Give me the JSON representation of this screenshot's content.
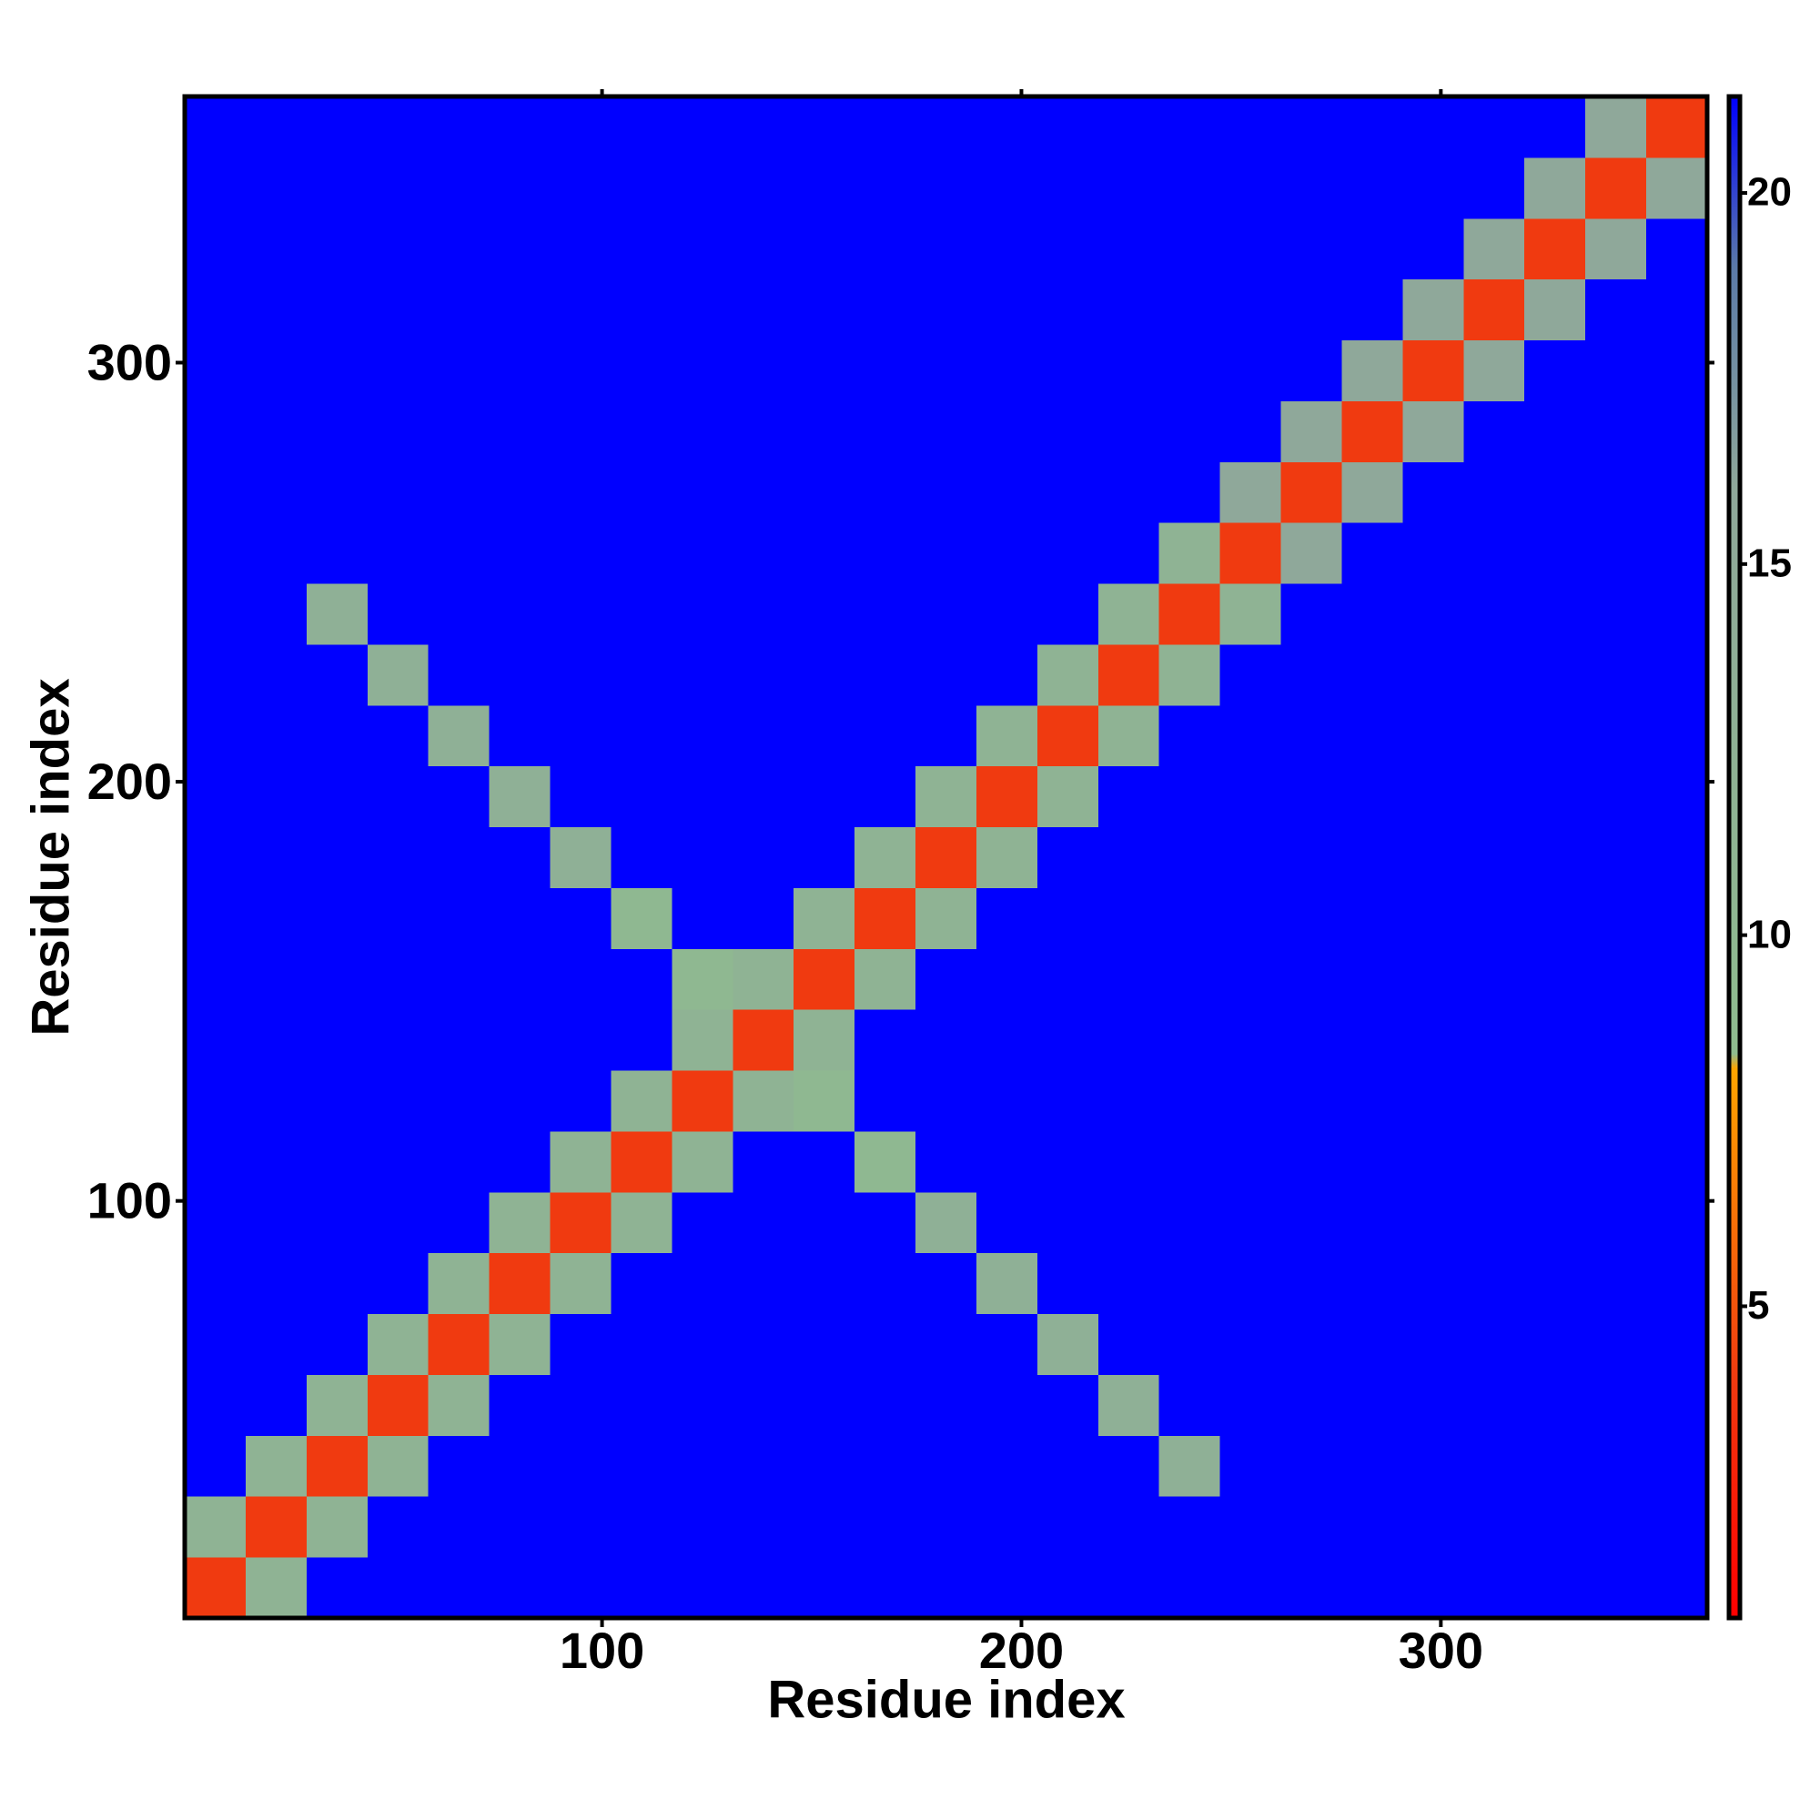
{
  "chart_data": {
    "type": "heatmap",
    "xlabel": "Residue index",
    "ylabel": "Residue index",
    "xlim": [
      0.5,
      363.5
    ],
    "ylim": [
      0.5,
      363.5
    ],
    "xticks": [
      100,
      200,
      300
    ],
    "yticks": [
      100,
      200,
      300
    ],
    "zlim": [
      0.8,
      21.3
    ],
    "colorbar_ticks": [
      5,
      10,
      15,
      20
    ],
    "colorscale": [
      [
        0.8,
        "#ff0000"
      ],
      [
        4,
        "#f03a10"
      ],
      [
        8.2,
        "#ffa500"
      ],
      [
        8.4,
        "#8fbc8f"
      ],
      [
        16,
        "#8fa89a"
      ],
      [
        19,
        "#5b7aa8"
      ],
      [
        21.3,
        "#0000ff"
      ]
    ],
    "xbins": [
      0.5,
      15.02,
      29.54,
      44.06,
      58.58,
      73.1,
      87.62,
      102.14,
      116.66,
      131.18,
      145.7,
      160.22,
      174.74,
      189.26,
      203.78,
      218.3,
      232.82,
      247.34,
      261.86,
      276.38,
      290.9,
      305.42,
      319.94,
      334.46,
      348.98,
      363.5
    ],
    "ybins": [
      0.5,
      15.02,
      29.54,
      44.06,
      58.58,
      73.1,
      87.62,
      102.14,
      116.66,
      131.18,
      145.7,
      160.22,
      174.74,
      189.26,
      203.78,
      218.3,
      232.82,
      247.34,
      261.86,
      276.38,
      290.9,
      305.42,
      319.94,
      334.46,
      348.98,
      363.5
    ],
    "z": [
      [
        4,
        12,
        21.3,
        21.3,
        21.3,
        21.3,
        21.3,
        21.3,
        21.3,
        21.3,
        21.3,
        21.3,
        21.3,
        21.3,
        21.3,
        21.3,
        21.3,
        21.3,
        21.3,
        21.3,
        21.3,
        21.3,
        21.3,
        21.3,
        21.3
      ],
      [
        12,
        4,
        12,
        21.3,
        21.3,
        21.3,
        21.3,
        21.3,
        21.3,
        21.3,
        21.3,
        21.3,
        21.3,
        21.3,
        21.3,
        21.3,
        21.3,
        21.3,
        21.3,
        21.3,
        21.3,
        21.3,
        21.3,
        21.3,
        21.3
      ],
      [
        21.3,
        12,
        4,
        12,
        21.3,
        21.3,
        21.3,
        21.3,
        21.3,
        21.3,
        21.3,
        21.3,
        21.3,
        21.3,
        21.3,
        21.3,
        13,
        21.3,
        21.3,
        21.3,
        21.3,
        21.3,
        21.3,
        21.3,
        21.3
      ],
      [
        21.3,
        21.3,
        12,
        4,
        12,
        21.3,
        21.3,
        21.3,
        21.3,
        21.3,
        21.3,
        21.3,
        21.3,
        21.3,
        21.3,
        13,
        21.3,
        21.3,
        21.3,
        21.3,
        21.3,
        21.3,
        21.3,
        21.3,
        21.3
      ],
      [
        21.3,
        21.3,
        21.3,
        12,
        4,
        12,
        21.3,
        21.3,
        21.3,
        21.3,
        21.3,
        21.3,
        21.3,
        21.3,
        13,
        21.3,
        21.3,
        21.3,
        21.3,
        21.3,
        21.3,
        21.3,
        21.3,
        21.3,
        21.3
      ],
      [
        21.3,
        21.3,
        21.3,
        21.3,
        12,
        4,
        12,
        21.3,
        21.3,
        21.3,
        21.3,
        21.3,
        21.3,
        13,
        21.3,
        21.3,
        21.3,
        21.3,
        21.3,
        21.3,
        21.3,
        21.3,
        21.3,
        21.3,
        21.3
      ],
      [
        21.3,
        21.3,
        21.3,
        21.3,
        21.3,
        12,
        4,
        12,
        21.3,
        21.3,
        21.3,
        21.3,
        13,
        21.3,
        21.3,
        21.3,
        21.3,
        21.3,
        21.3,
        21.3,
        21.3,
        21.3,
        21.3,
        21.3,
        21.3
      ],
      [
        21.3,
        21.3,
        21.3,
        21.3,
        21.3,
        21.3,
        12,
        4,
        12,
        21.3,
        21.3,
        10,
        21.3,
        21.3,
        21.3,
        21.3,
        21.3,
        21.3,
        21.3,
        21.3,
        21.3,
        21.3,
        21.3,
        21.3,
        21.3
      ],
      [
        21.3,
        21.3,
        21.3,
        21.3,
        21.3,
        21.3,
        21.3,
        12,
        4,
        12,
        10,
        21.3,
        21.3,
        21.3,
        21.3,
        21.3,
        21.3,
        21.3,
        21.3,
        21.3,
        21.3,
        21.3,
        21.3,
        21.3,
        21.3
      ],
      [
        21.3,
        21.3,
        21.3,
        21.3,
        21.3,
        21.3,
        21.3,
        21.3,
        12,
        4,
        12,
        21.3,
        21.3,
        21.3,
        21.3,
        21.3,
        21.3,
        21.3,
        21.3,
        21.3,
        21.3,
        21.3,
        21.3,
        21.3,
        21.3
      ],
      [
        21.3,
        21.3,
        21.3,
        21.3,
        21.3,
        21.3,
        21.3,
        21.3,
        10,
        12,
        4,
        12,
        21.3,
        21.3,
        21.3,
        21.3,
        21.3,
        21.3,
        21.3,
        21.3,
        21.3,
        21.3,
        21.3,
        21.3,
        21.3
      ],
      [
        21.3,
        21.3,
        21.3,
        21.3,
        21.3,
        21.3,
        21.3,
        10,
        21.3,
        21.3,
        12,
        4,
        12,
        21.3,
        21.3,
        21.3,
        21.3,
        21.3,
        21.3,
        21.3,
        21.3,
        21.3,
        21.3,
        21.3,
        21.3
      ],
      [
        21.3,
        21.3,
        21.3,
        21.3,
        21.3,
        21.3,
        13,
        21.3,
        21.3,
        21.3,
        21.3,
        12,
        4,
        12,
        21.3,
        21.3,
        21.3,
        21.3,
        21.3,
        21.3,
        21.3,
        21.3,
        21.3,
        21.3,
        21.3
      ],
      [
        21.3,
        21.3,
        21.3,
        21.3,
        21.3,
        13,
        21.3,
        21.3,
        21.3,
        21.3,
        21.3,
        21.3,
        12,
        4,
        12,
        21.3,
        21.3,
        21.3,
        21.3,
        21.3,
        21.3,
        21.3,
        21.3,
        21.3,
        21.3
      ],
      [
        21.3,
        21.3,
        21.3,
        21.3,
        13,
        21.3,
        21.3,
        21.3,
        21.3,
        21.3,
        21.3,
        21.3,
        21.3,
        12,
        4,
        12,
        21.3,
        21.3,
        21.3,
        21.3,
        21.3,
        21.3,
        21.3,
        21.3,
        21.3
      ],
      [
        21.3,
        21.3,
        21.3,
        13,
        21.3,
        21.3,
        21.3,
        21.3,
        21.3,
        21.3,
        21.3,
        21.3,
        21.3,
        21.3,
        12,
        4,
        12,
        21.3,
        21.3,
        21.3,
        21.3,
        21.3,
        21.3,
        21.3,
        21.3
      ],
      [
        21.3,
        21.3,
        13,
        21.3,
        21.3,
        21.3,
        21.3,
        21.3,
        21.3,
        21.3,
        21.3,
        21.3,
        21.3,
        21.3,
        21.3,
        12,
        4,
        12,
        21.3,
        21.3,
        21.3,
        21.3,
        21.3,
        21.3,
        21.3
      ],
      [
        21.3,
        21.3,
        21.3,
        21.3,
        21.3,
        21.3,
        21.3,
        21.3,
        21.3,
        21.3,
        21.3,
        21.3,
        21.3,
        21.3,
        21.3,
        21.3,
        12,
        4,
        16,
        21.3,
        21.3,
        21.3,
        21.3,
        21.3,
        21.3
      ],
      [
        21.3,
        21.3,
        21.3,
        21.3,
        21.3,
        21.3,
        21.3,
        21.3,
        21.3,
        21.3,
        21.3,
        21.3,
        21.3,
        21.3,
        21.3,
        21.3,
        21.3,
        16,
        4,
        16,
        21.3,
        21.3,
        21.3,
        21.3,
        21.3
      ],
      [
        21.3,
        21.3,
        21.3,
        21.3,
        21.3,
        21.3,
        21.3,
        21.3,
        21.3,
        21.3,
        21.3,
        21.3,
        21.3,
        21.3,
        21.3,
        21.3,
        21.3,
        21.3,
        16,
        4,
        16,
        21.3,
        21.3,
        21.3,
        21.3
      ],
      [
        21.3,
        21.3,
        21.3,
        21.3,
        21.3,
        21.3,
        21.3,
        21.3,
        21.3,
        21.3,
        21.3,
        21.3,
        21.3,
        21.3,
        21.3,
        21.3,
        21.3,
        21.3,
        21.3,
        16,
        4,
        16,
        21.3,
        21.3,
        21.3
      ],
      [
        21.3,
        21.3,
        21.3,
        21.3,
        21.3,
        21.3,
        21.3,
        21.3,
        21.3,
        21.3,
        21.3,
        21.3,
        21.3,
        21.3,
        21.3,
        21.3,
        21.3,
        21.3,
        21.3,
        21.3,
        16,
        4,
        16,
        21.3,
        21.3
      ],
      [
        21.3,
        21.3,
        21.3,
        21.3,
        21.3,
        21.3,
        21.3,
        21.3,
        21.3,
        21.3,
        21.3,
        21.3,
        21.3,
        21.3,
        21.3,
        21.3,
        21.3,
        21.3,
        21.3,
        21.3,
        21.3,
        16,
        4,
        16,
        21.3
      ],
      [
        21.3,
        21.3,
        21.3,
        21.3,
        21.3,
        21.3,
        21.3,
        21.3,
        21.3,
        21.3,
        21.3,
        21.3,
        21.3,
        21.3,
        21.3,
        21.3,
        21.3,
        21.3,
        21.3,
        21.3,
        21.3,
        21.3,
        16,
        4,
        16
      ],
      [
        21.3,
        21.3,
        21.3,
        21.3,
        21.3,
        21.3,
        21.3,
        21.3,
        21.3,
        21.3,
        21.3,
        21.3,
        21.3,
        21.3,
        21.3,
        21.3,
        21.3,
        21.3,
        21.3,
        21.3,
        21.3,
        21.3,
        21.3,
        16,
        4
      ]
    ]
  }
}
